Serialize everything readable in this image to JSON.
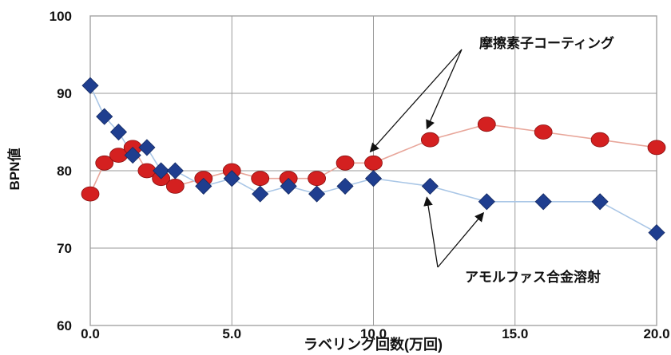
{
  "chart_data": {
    "type": "line",
    "title": "",
    "xlabel": "ラベリング回数(万回)",
    "ylabel": "BPN値",
    "xlim": [
      0,
      20
    ],
    "ylim": [
      60,
      100
    ],
    "x_ticks": [
      "0.0",
      "5.0",
      "10.0",
      "15.0",
      "20.0"
    ],
    "y_ticks": [
      "60",
      "70",
      "80",
      "90",
      "100"
    ],
    "grid": true,
    "series": [
      {
        "name": "摩擦素子コーティング",
        "marker": "circle",
        "color": "#d42020",
        "line_color": "#e8a69a",
        "x": [
          0.0,
          0.5,
          1.0,
          1.5,
          2.0,
          2.5,
          3.0,
          4.0,
          5.0,
          6.0,
          7.0,
          8.0,
          9.0,
          10.0,
          12.0,
          14.0,
          16.0,
          18.0,
          20.0
        ],
        "y": [
          77,
          81,
          82,
          83,
          80,
          79,
          78,
          79,
          80,
          79,
          79,
          79,
          81,
          81,
          84,
          86,
          85,
          84,
          83
        ]
      },
      {
        "name": "アモルファス合金溶射",
        "marker": "diamond",
        "color": "#1f3e8f",
        "line_color": "#a9c6e6",
        "x": [
          0.0,
          0.5,
          1.0,
          1.5,
          2.0,
          2.5,
          3.0,
          4.0,
          5.0,
          6.0,
          7.0,
          8.0,
          9.0,
          10.0,
          12.0,
          14.0,
          16.0,
          18.0,
          20.0
        ],
        "y": [
          91,
          87,
          85,
          82,
          83,
          80,
          80,
          78,
          79,
          77,
          78,
          77,
          78,
          79,
          78,
          76,
          76,
          76,
          72
        ]
      }
    ],
    "annotations": [
      {
        "text": "摩擦素子コーティング",
        "series": 0,
        "points": [
          13,
          14
        ]
      },
      {
        "text": "アモルファス合金溶射",
        "series": 1,
        "points": [
          14,
          15
        ]
      }
    ]
  }
}
